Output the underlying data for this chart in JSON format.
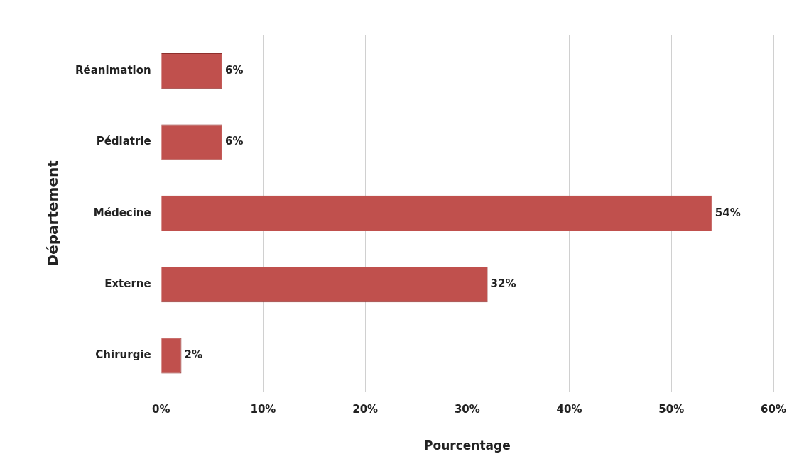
{
  "chart_data": {
    "type": "bar",
    "orientation": "horizontal",
    "xlabel": "Pourcentage",
    "ylabel": "Département",
    "categories": [
      "Réanimation",
      "Pédiatrie",
      "Médecine",
      "Externe",
      "Chirurgie"
    ],
    "values": [
      6,
      6,
      54,
      32,
      2
    ],
    "value_labels": [
      "6%",
      "6%",
      "54%",
      "32%",
      "2%"
    ],
    "color": "#c0504d",
    "xlim": [
      0,
      60
    ],
    "xticks": [
      {
        "value": 0,
        "label": "0%"
      },
      {
        "value": 10,
        "label": "10%"
      },
      {
        "value": 20,
        "label": "20%"
      },
      {
        "value": 30,
        "label": "30%"
      },
      {
        "value": 40,
        "label": "40%"
      },
      {
        "value": 50,
        "label": "50%"
      },
      {
        "value": 60,
        "label": "60%"
      }
    ],
    "grid": "x",
    "legend": false
  }
}
